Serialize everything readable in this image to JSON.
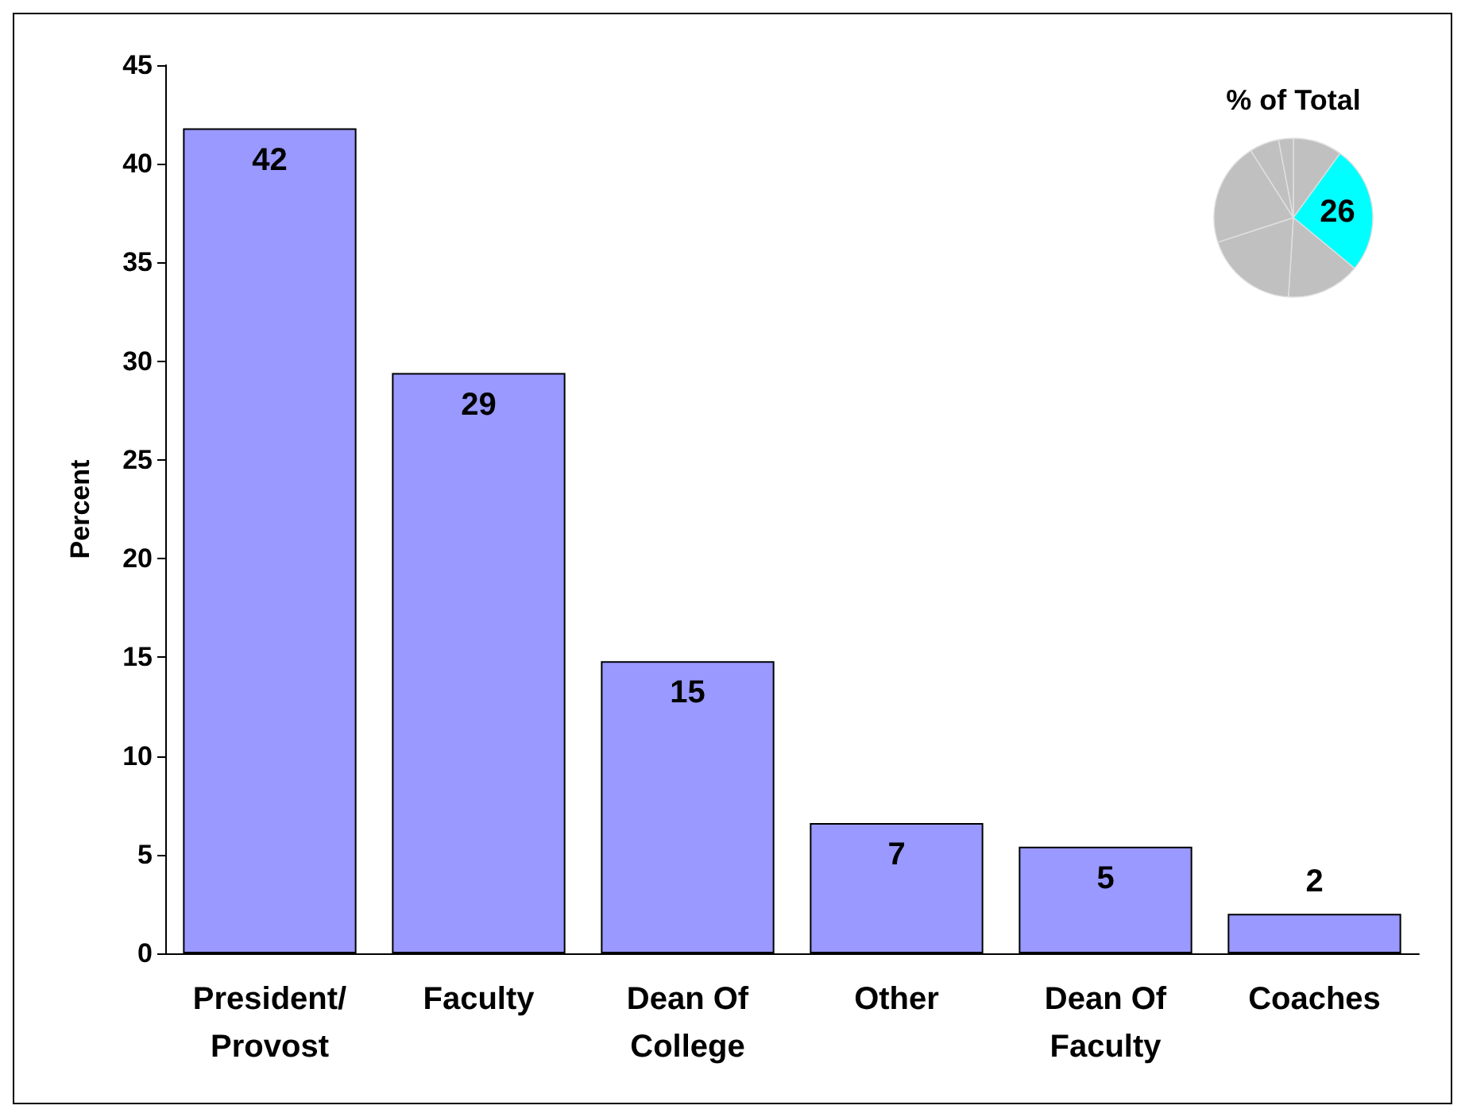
{
  "chart_data": [
    {
      "type": "bar",
      "ylabel": "Percent",
      "categories": [
        "President/\nProvost",
        "Faculty",
        "Dean Of\nCollege",
        "Other",
        "Dean Of\nFaculty",
        "Coaches"
      ],
      "values": [
        41.8,
        29.4,
        14.8,
        6.6,
        5.4,
        2.0
      ],
      "value_labels": [
        "42",
        "29",
        "15",
        "7",
        "5",
        "2"
      ],
      "color": "#9999ff",
      "ylim": [
        0,
        45
      ],
      "yticks": [
        0,
        5,
        10,
        15,
        20,
        25,
        30,
        35,
        40,
        45
      ],
      "grid": false
    },
    {
      "type": "pie",
      "title": "% of Total",
      "categories": [
        null,
        null,
        null,
        null,
        null,
        null,
        null
      ],
      "values": [
        10,
        26,
        15,
        19,
        21,
        6,
        3
      ],
      "colors": [
        "#c0c0c0",
        "#00ffff",
        "#c0c0c0",
        "#c0c0c0",
        "#c0c0c0",
        "#c0c0c0",
        "#c0c0c0"
      ],
      "value_labels": [
        null,
        "26",
        null,
        null,
        null,
        null,
        null
      ]
    }
  ]
}
